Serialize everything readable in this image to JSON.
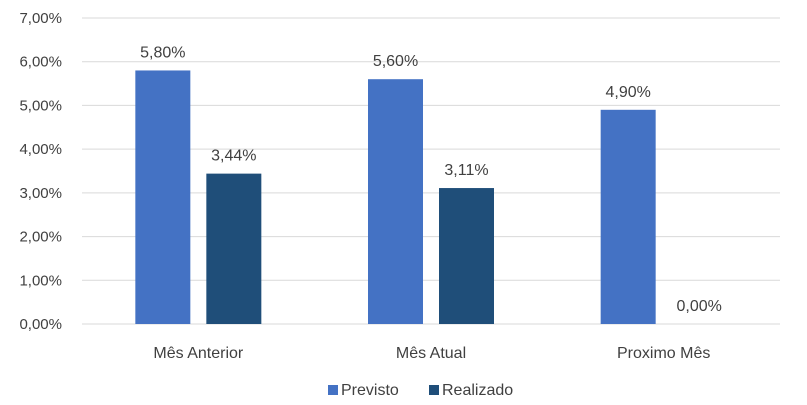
{
  "chart_data": {
    "type": "bar",
    "categories": [
      "Mês Anterior",
      "Mês Atual",
      "Proximo Mês"
    ],
    "series": [
      {
        "name": "Previsto",
        "values": [
          5.8,
          5.6,
          4.9
        ],
        "color": "#4472c4"
      },
      {
        "name": "Realizado",
        "values": [
          3.44,
          3.11,
          0.0
        ],
        "color": "#1f4e79"
      }
    ],
    "data_labels": [
      [
        "5,80%",
        "5,60%",
        "4,90%"
      ],
      [
        "3,44%",
        "3,11%",
        "0,00%"
      ]
    ],
    "ylim": [
      0,
      7
    ],
    "yticks": [
      0,
      1,
      2,
      3,
      4,
      5,
      6,
      7
    ],
    "ytick_labels": [
      "0,00%",
      "1,00%",
      "2,00%",
      "3,00%",
      "4,00%",
      "5,00%",
      "6,00%",
      "7,00%"
    ],
    "grid": true,
    "legend": "bottom",
    "title": "",
    "xlabel": "",
    "ylabel": ""
  }
}
